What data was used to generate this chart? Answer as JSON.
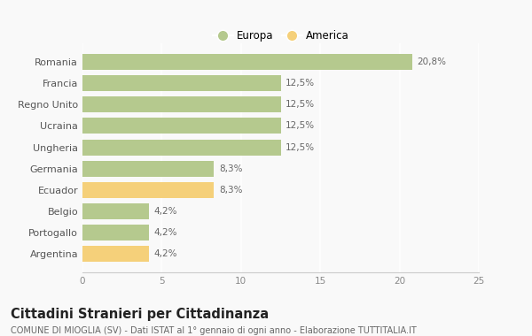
{
  "categories": [
    "Romania",
    "Francia",
    "Regno Unito",
    "Ucraina",
    "Ungheria",
    "Germania",
    "Ecuador",
    "Belgio",
    "Portogallo",
    "Argentina"
  ],
  "values": [
    20.8,
    12.5,
    12.5,
    12.5,
    12.5,
    8.3,
    8.3,
    4.2,
    4.2,
    4.2
  ],
  "colors": [
    "#b5c98e",
    "#b5c98e",
    "#b5c98e",
    "#b5c98e",
    "#b5c98e",
    "#b5c98e",
    "#f5d07a",
    "#b5c98e",
    "#b5c98e",
    "#f5d07a"
  ],
  "labels": [
    "20,8%",
    "12,5%",
    "12,5%",
    "12,5%",
    "12,5%",
    "8,3%",
    "8,3%",
    "4,2%",
    "4,2%",
    "4,2%"
  ],
  "legend_labels": [
    "Europa",
    "America"
  ],
  "legend_colors": [
    "#b5c98e",
    "#f5d07a"
  ],
  "xlim": [
    0,
    25
  ],
  "xticks": [
    0,
    5,
    10,
    15,
    20,
    25
  ],
  "title": "Cittadini Stranieri per Cittadinanza",
  "subtitle": "COMUNE DI MIOGLIA (SV) - Dati ISTAT al 1° gennaio di ogni anno - Elaborazione TUTTITALIA.IT",
  "background_color": "#f9f9f9",
  "grid_color": "#ffffff",
  "label_fontsize": 7.5,
  "ytick_fontsize": 8,
  "xtick_fontsize": 7.5,
  "title_fontsize": 10.5,
  "subtitle_fontsize": 7,
  "bar_height": 0.75
}
